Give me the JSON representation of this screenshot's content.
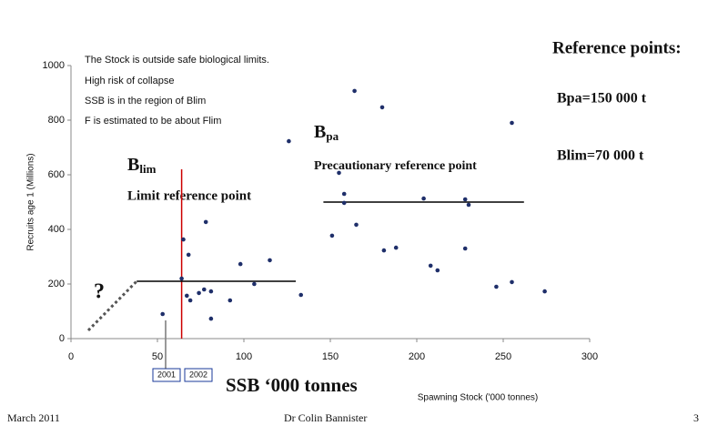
{
  "chart_data": {
    "type": "scatter",
    "xlabel": "Spawning Stock ('000 tonnes)",
    "ylabel": "Recruits age 1 (Millions)",
    "x": [
      164,
      180,
      126,
      255,
      155,
      158,
      158,
      204,
      228,
      230,
      165,
      151,
      78,
      65,
      68,
      98,
      115,
      188,
      181,
      228,
      208,
      212,
      106,
      133,
      64,
      67,
      69,
      77,
      74,
      81,
      92,
      81,
      53,
      246,
      255,
      274
    ],
    "values": [
      907,
      847,
      723,
      790,
      607,
      530,
      497,
      513,
      510,
      490,
      417,
      377,
      427,
      363,
      307,
      273,
      287,
      333,
      323,
      330,
      267,
      250,
      200,
      160,
      220,
      157,
      140,
      180,
      167,
      173,
      140,
      73,
      90,
      190,
      207,
      173
    ],
    "color": "#1f2f6a",
    "xlim": [
      0,
      300
    ],
    "xticks": [
      0,
      50,
      100,
      150,
      200,
      250,
      300
    ],
    "ylim": [
      0,
      1000
    ],
    "yticks": [
      0,
      200,
      400,
      600,
      800,
      1000
    ],
    "reference_lines": [
      {
        "x": [
          64,
          64
        ],
        "y": [
          0,
          620
        ],
        "color": "#cc0000",
        "dash": false
      },
      {
        "x": [
          146,
          262
        ],
        "y": [
          500,
          500
        ],
        "color": "#000000",
        "dash": false
      },
      {
        "x": [
          38,
          130
        ],
        "y": [
          210,
          210
        ],
        "color": "#000000",
        "dash": false
      },
      {
        "x": [
          10,
          38
        ],
        "y": [
          30,
          210
        ],
        "color": "#555555",
        "dash": true
      }
    ],
    "notes": [
      "The Stock is outside safe biological limits.",
      "High risk of collapse",
      "SSB is in the region of Blim",
      "F is estimated to be about Flim"
    ],
    "reference_heading": "Reference points:",
    "reference_bpa": "Bpa=150 000 t",
    "reference_blim": "Blim=70 000 t",
    "blim_symbol": {
      "base": "B",
      "sub": "lim"
    },
    "blim_caption": "Limit reference point",
    "bpa_symbol": {
      "base": "B",
      "sub": "pa"
    },
    "bpa_caption": "Precautionary reference point",
    "question": "?",
    "year_labels": [
      "2001",
      "2002"
    ],
    "ssb_caption": "SSB ‘000 tonnes"
  },
  "footer": {
    "date": "March 2011",
    "author": "Dr Colin Bannister",
    "page": "3"
  }
}
